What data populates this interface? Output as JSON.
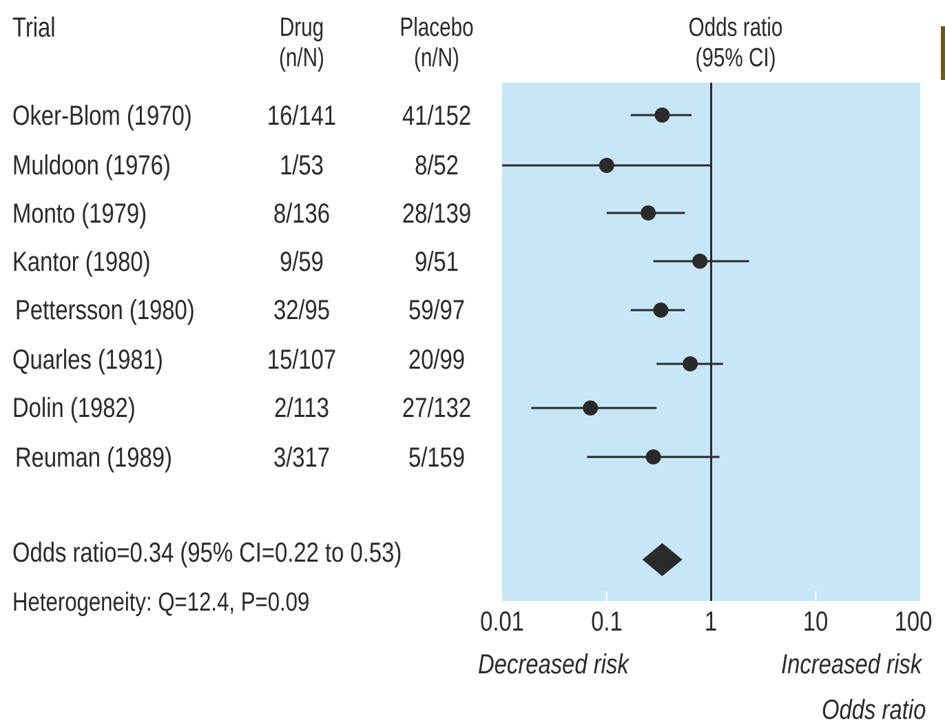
{
  "headers": {
    "trial": "Trial",
    "drug": [
      "Drug",
      "(n/N)"
    ],
    "placebo": [
      "Placebo",
      "(n/N)"
    ],
    "odds": [
      "Odds ratio",
      "(95% CI)"
    ]
  },
  "rows": [
    {
      "trial": "Oker-Blom (1970)",
      "drug": "16/141",
      "placebo": "41/152"
    },
    {
      "trial": "Muldoon (1976)",
      "drug": "1/53",
      "placebo": "8/52"
    },
    {
      "trial": "Monto (1979)",
      "drug": "8/136",
      "placebo": "28/139"
    },
    {
      "trial": "Kantor (1980)",
      "drug": "9/59",
      "placebo": "9/51"
    },
    {
      "trial": "Pettersson (1980)",
      "drug": "32/95",
      "placebo": "59/97"
    },
    {
      "trial": "Quarles (1981)",
      "drug": "15/107",
      "placebo": "20/99"
    },
    {
      "trial": "Dolin (1982)",
      "drug": "2/113",
      "placebo": "27/132"
    },
    {
      "trial": "Reuman (1989)",
      "drug": "3/317",
      "placebo": "5/159"
    }
  ],
  "summary": {
    "pooled": "Odds ratio=0.34 (95% CI=0.22 to 0.53)",
    "heterogeneity": "Heterogeneity: Q=12.4, P=0.09"
  },
  "axis": {
    "ticks": [
      "0.01",
      "0.1",
      "1",
      "10",
      "100"
    ],
    "left_note": "Decreased risk",
    "right_note": "Increased risk",
    "xlabel": "Odds ratio"
  },
  "colors": {
    "panel": "#c7e7f8",
    "ink": "#2a2a2a"
  },
  "chart_data": {
    "type": "forest",
    "x_scale": "log",
    "xlim": [
      0.01,
      100
    ],
    "reference_line": 1,
    "points": [
      {
        "label": "Oker-Blom (1970)",
        "or": 0.34,
        "lo": 0.17,
        "hi": 0.65
      },
      {
        "label": "Muldoon (1976)",
        "or": 0.1,
        "lo": 0.01,
        "hi": 1.0
      },
      {
        "label": "Monto (1979)",
        "or": 0.25,
        "lo": 0.1,
        "hi": 0.56
      },
      {
        "label": "Kantor (1980)",
        "or": 0.78,
        "lo": 0.28,
        "hi": 2.3
      },
      {
        "label": "Pettersson (1980)",
        "or": 0.33,
        "lo": 0.17,
        "hi": 0.56
      },
      {
        "label": "Quarles (1981)",
        "or": 0.63,
        "lo": 0.3,
        "hi": 1.3
      },
      {
        "label": "Dolin (1982)",
        "or": 0.07,
        "lo": 0.019,
        "hi": 0.3
      },
      {
        "label": "Reuman (1989)",
        "or": 0.28,
        "lo": 0.065,
        "hi": 1.2
      }
    ],
    "pooled": {
      "or": 0.34,
      "lo": 0.22,
      "hi": 0.53
    }
  }
}
